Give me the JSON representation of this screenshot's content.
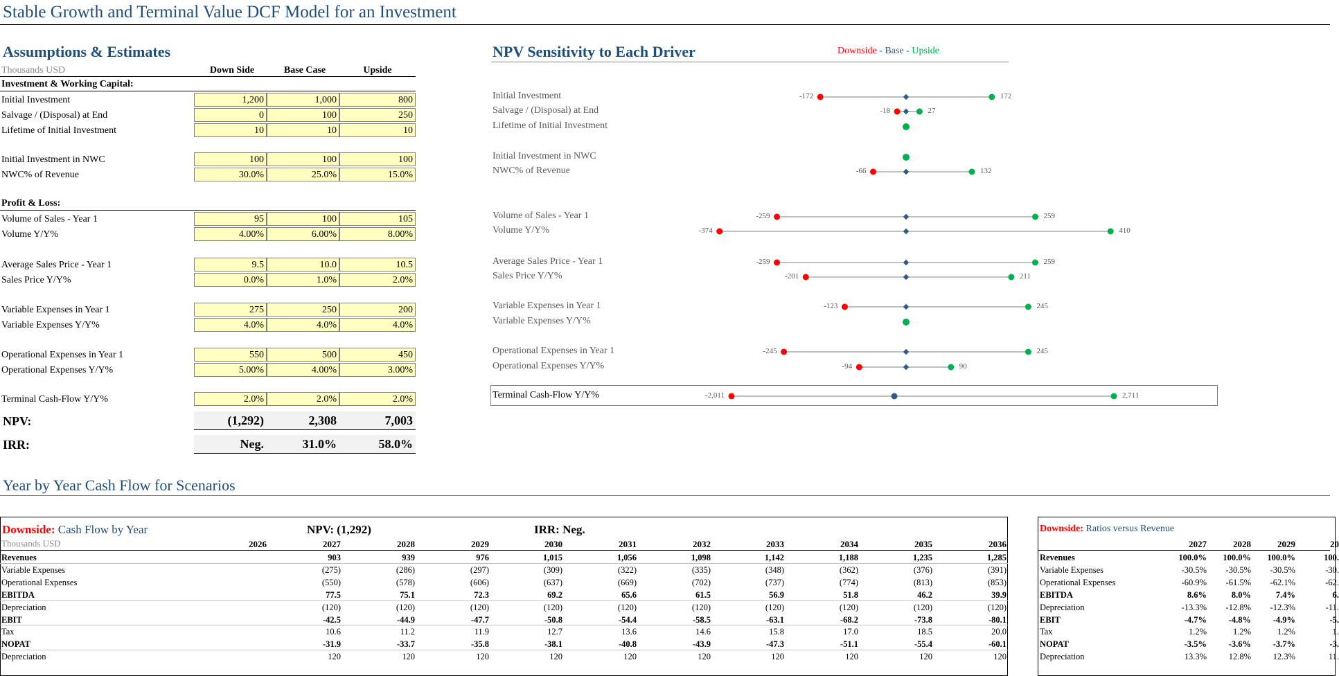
{
  "page_title": "Stable Growth and Terminal Value DCF Model for an Investment",
  "assumptions": {
    "title": "Assumptions & Estimates",
    "units": "Thousands USD",
    "col_headers": [
      "Down Side",
      "Base Case",
      "Upside"
    ],
    "section1": "Investment & Working Capital:",
    "section2": "Profit & Loss:",
    "rows": [
      {
        "label": "Initial Investment",
        "values": [
          "1,200",
          "1,000",
          "800"
        ]
      },
      {
        "label": "Salvage / (Disposal) at End",
        "values": [
          "0",
          "100",
          "250"
        ]
      },
      {
        "label": "Lifetime of Initial Investment",
        "values": [
          "10",
          "10",
          "10"
        ]
      },
      {
        "label": "Initial Investment in NWC",
        "values": [
          "100",
          "100",
          "100"
        ]
      },
      {
        "label": "NWC% of Revenue",
        "values": [
          "30.0%",
          "25.0%",
          "15.0%"
        ]
      },
      {
        "label": "Volume of Sales - Year 1",
        "values": [
          "95",
          "100",
          "105"
        ]
      },
      {
        "label": "Volume Y/Y%",
        "values": [
          "4.00%",
          "6.00%",
          "8.00%"
        ]
      },
      {
        "label": "Average Sales Price - Year 1",
        "values": [
          "9.5",
          "10.0",
          "10.5"
        ]
      },
      {
        "label": "Sales Price Y/Y%",
        "values": [
          "0.0%",
          "1.0%",
          "2.0%"
        ]
      },
      {
        "label": "Variable Expenses in Year 1",
        "values": [
          "275",
          "250",
          "200"
        ]
      },
      {
        "label": "Variable Expenses Y/Y%",
        "values": [
          "4.0%",
          "4.0%",
          "4.0%"
        ]
      },
      {
        "label": "Operational Expenses in Year 1",
        "values": [
          "550",
          "500",
          "450"
        ]
      },
      {
        "label": "Operational Expenses Y/Y%",
        "values": [
          "5.00%",
          "4.00%",
          "3.00%"
        ]
      },
      {
        "label": "Terminal Cash-Flow Y/Y%",
        "values": [
          "2.0%",
          "2.0%",
          "2.0%"
        ]
      }
    ],
    "npv": {
      "label": "NPV:",
      "values": [
        "(1,292)",
        "2,308",
        "7,003"
      ]
    },
    "irr": {
      "label": "IRR:",
      "values": [
        "Neg.",
        "31.0%",
        "58.0%"
      ]
    }
  },
  "sensitivity": {
    "title": "NPV Sensitivity to Each Driver",
    "legend": {
      "down": "Downside",
      "sep": " - ",
      "base": "Base",
      "up": "Upside"
    },
    "colors": {
      "down": "#ff0000",
      "base": "#2e5c8a",
      "up": "#00b050",
      "line": "#7f7f7f"
    },
    "rows": [
      {
        "label": "Initial Investment",
        "down": -172,
        "up": 172,
        "down_label": "-172",
        "up_label": "172"
      },
      {
        "label": "Salvage / (Disposal) at End",
        "down": -18,
        "up": 27,
        "down_label": "-18",
        "up_label": "27"
      },
      {
        "label": "Lifetime of Initial Investment",
        "down": 0,
        "up": 0,
        "down_label": "",
        "up_label": ""
      },
      {
        "label": "Initial Investment in NWC",
        "down": 0,
        "up": 0,
        "down_label": "",
        "up_label": ""
      },
      {
        "label": "NWC% of Revenue",
        "down": -66,
        "up": 132,
        "down_label": "-66",
        "up_label": "132"
      },
      {
        "label": "Volume of Sales - Year 1",
        "down": -259,
        "up": 259,
        "down_label": "-259",
        "up_label": "259"
      },
      {
        "label": "Volume Y/Y%",
        "down": -374,
        "up": 410,
        "down_label": "-374",
        "up_label": "410"
      },
      {
        "label": "Average Sales Price - Year 1",
        "down": -259,
        "up": 259,
        "down_label": "-259",
        "up_label": "259"
      },
      {
        "label": "Sales Price Y/Y%",
        "down": -201,
        "up": 211,
        "down_label": "-201",
        "up_label": "211"
      },
      {
        "label": "Variable Expenses in Year 1",
        "down": -123,
        "up": 245,
        "down_label": "-123",
        "up_label": "245"
      },
      {
        "label": "Variable Expenses Y/Y%",
        "down": 0,
        "up": 0,
        "down_label": "",
        "up_label": ""
      },
      {
        "label": "Operational Expenses in Year 1",
        "down": -245,
        "up": 245,
        "down_label": "-245",
        "up_label": "245"
      },
      {
        "label": "Operational Expenses Y/Y%",
        "down": -94,
        "up": 90,
        "down_label": "-94",
        "up_label": "90"
      },
      {
        "label": "Terminal Cash-Flow Y/Y%",
        "down": -2011,
        "up": 2711,
        "down_label": "-2,011",
        "up_label": "2,711"
      }
    ]
  },
  "yby": {
    "title": "Year by Year Cash Flow for Scenarios",
    "table": {
      "title_prefix": "Downside:",
      "title": "Cash Flow by Year",
      "npv_label": "NPV: (1,292)",
      "irr_label": "IRR: Neg.",
      "units": "Thousands USD",
      "years": [
        "2026",
        "2027",
        "2028",
        "2029",
        "2030",
        "2031",
        "2032",
        "2033",
        "2034",
        "2035",
        "2036"
      ],
      "rows": [
        {
          "label": "Revenues",
          "bold": true,
          "values": [
            "",
            "903",
            "939",
            "976",
            "1,015",
            "1,056",
            "1,098",
            "1,142",
            "1,188",
            "1,235",
            "1,285"
          ]
        },
        {
          "label": "Variable Expenses",
          "bold": false,
          "values": [
            "",
            "(275)",
            "(286)",
            "(297)",
            "(309)",
            "(322)",
            "(335)",
            "(348)",
            "(362)",
            "(376)",
            "(391)"
          ]
        },
        {
          "label": "Operational Expenses",
          "bold": false,
          "values": [
            "",
            "(550)",
            "(578)",
            "(606)",
            "(637)",
            "(669)",
            "(702)",
            "(737)",
            "(774)",
            "(813)",
            "(853)"
          ]
        },
        {
          "label": "EBITDA",
          "bold": true,
          "values": [
            "",
            "77.5",
            "75.1",
            "72.3",
            "69.2",
            "65.6",
            "61.5",
            "56.9",
            "51.8",
            "46.2",
            "39.9"
          ]
        },
        {
          "label": "Depreciation",
          "bold": false,
          "values": [
            "",
            "(120)",
            "(120)",
            "(120)",
            "(120)",
            "(120)",
            "(120)",
            "(120)",
            "(120)",
            "(120)",
            "(120)"
          ]
        },
        {
          "label": "EBIT",
          "bold": true,
          "values": [
            "",
            "-42.5",
            "-44.9",
            "-47.7",
            "-50.8",
            "-54.4",
            "-58.5",
            "-63.1",
            "-68.2",
            "-73.8",
            "-80.1"
          ]
        },
        {
          "label": "Tax",
          "bold": false,
          "values": [
            "",
            "10.6",
            "11.2",
            "11.9",
            "12.7",
            "13.6",
            "14.6",
            "15.8",
            "17.0",
            "18.5",
            "20.0"
          ]
        },
        {
          "label": "NOPAT",
          "bold": true,
          "values": [
            "",
            "-31.9",
            "-33.7",
            "-35.8",
            "-38.1",
            "-40.8",
            "-43.9",
            "-47.3",
            "-51.1",
            "-55.4",
            "-60.1"
          ]
        },
        {
          "label": "Depreciation",
          "bold": false,
          "values": [
            "",
            "120",
            "120",
            "120",
            "120",
            "120",
            "120",
            "120",
            "120",
            "120",
            "120"
          ]
        }
      ]
    },
    "ratios": {
      "title_prefix": "Downside:",
      "title": "Ratios versus Revenue",
      "years": [
        "2027",
        "2028",
        "2029",
        "20"
      ],
      "rows": [
        {
          "label": "Revenues",
          "bold": true,
          "values": [
            "100.0%",
            "100.0%",
            "100.0%",
            "100."
          ]
        },
        {
          "label": "Variable Expenses",
          "bold": false,
          "values": [
            "-30.5%",
            "-30.5%",
            "-30.5%",
            "-30."
          ]
        },
        {
          "label": "Operational Expenses",
          "bold": false,
          "values": [
            "-60.9%",
            "-61.5%",
            "-62.1%",
            "-62."
          ]
        },
        {
          "label": "EBITDA",
          "bold": true,
          "values": [
            "8.6%",
            "8.0%",
            "7.4%",
            "6."
          ]
        },
        {
          "label": "Depreciation",
          "bold": false,
          "values": [
            "-13.3%",
            "-12.8%",
            "-12.3%",
            "-11."
          ]
        },
        {
          "label": "EBIT",
          "bold": true,
          "values": [
            "-4.7%",
            "-4.8%",
            "-4.9%",
            "-5."
          ]
        },
        {
          "label": "Tax",
          "bold": false,
          "values": [
            "1.2%",
            "1.2%",
            "1.2%",
            "1."
          ]
        },
        {
          "label": "NOPAT",
          "bold": true,
          "values": [
            "-3.5%",
            "-3.6%",
            "-3.7%",
            "-3."
          ]
        },
        {
          "label": "Depreciation",
          "bold": false,
          "values": [
            "13.3%",
            "12.8%",
            "12.3%",
            "11."
          ]
        }
      ]
    }
  }
}
